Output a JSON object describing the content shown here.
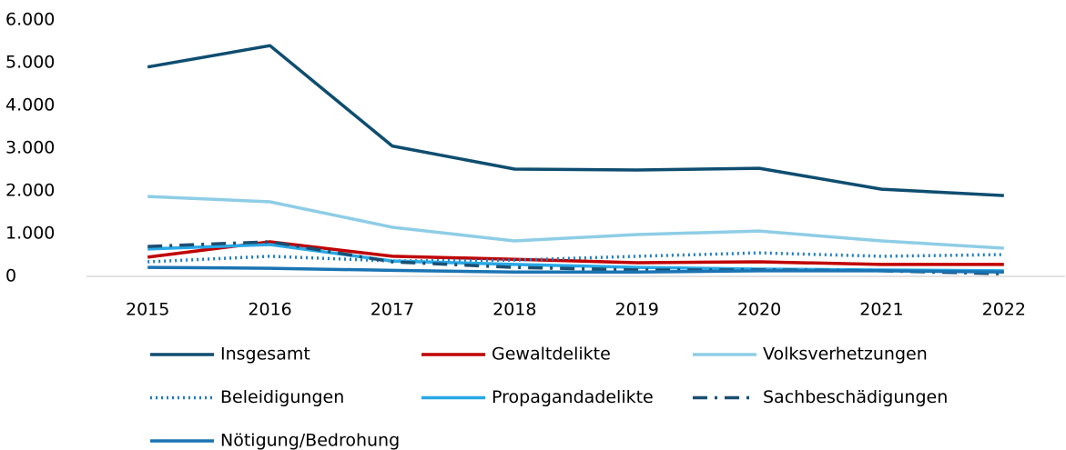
{
  "chart_data": {
    "type": "line",
    "categories": [
      "2015",
      "2016",
      "2017",
      "2018",
      "2019",
      "2020",
      "2021",
      "2022"
    ],
    "ylim": [
      0,
      6000
    ],
    "yticks": [
      0,
      {
        "value": 1000,
        "label": "1.000"
      },
      {
        "value": 2000,
        "label": "2.000"
      },
      {
        "value": 3000,
        "label": "3.000"
      },
      {
        "value": 4000,
        "label": "4.000"
      },
      {
        "value": 5000,
        "label": "5.000"
      },
      {
        "value": 6000,
        "label": "6.000"
      }
    ],
    "grid": false,
    "legend": "bottom",
    "series": [
      {
        "name": "Insgesamt",
        "color": "#0e4d70",
        "line_style": "solid",
        "values": [
          4900,
          5400,
          3050,
          2510,
          2490,
          2530,
          2040,
          1890
        ]
      },
      {
        "name": "Gewaltdelikte",
        "color": "#c00000",
        "line_style": "solid",
        "values": [
          450,
          810,
          470,
          400,
          320,
          340,
          280,
          280
        ]
      },
      {
        "name": "Volksverhetzungen",
        "color": "#8ecde6",
        "line_style": "solid",
        "values": [
          1870,
          1745,
          1150,
          830,
          980,
          1060,
          830,
          660
        ]
      },
      {
        "name": "Beleidigungen",
        "color": "#1f7dbf",
        "line_style": "dotted",
        "values": [
          340,
          470,
          360,
          380,
          470,
          550,
          470,
          510
        ]
      },
      {
        "name": "Propagandadelikte",
        "color": "#29a8e6",
        "line_style": "solid",
        "values": [
          640,
          745,
          360,
          280,
          210,
          170,
          150,
          130
        ]
      },
      {
        "name": "Sachbeschädigungen",
        "color": "#1b4f72",
        "line_style": "dashdot",
        "values": [
          700,
          810,
          340,
          210,
          150,
          150,
          130,
          60
        ]
      },
      {
        "name": "Nötigung/Bedrohung",
        "color": "#1a74b3",
        "line_style": "solid",
        "values": [
          210,
          190,
          140,
          100,
          100,
          130,
          130,
          100
        ]
      }
    ]
  }
}
